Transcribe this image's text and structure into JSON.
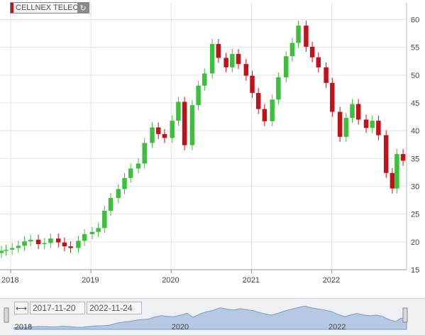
{
  "symbol": {
    "name": "CELLNEX TELECO",
    "refresh_icon": "refresh-icon"
  },
  "range": {
    "from": "2017-11-20",
    "to": "2022-11-24",
    "icon": "range-expand-icon"
  },
  "navigator": {
    "x_labels": [
      "2018",
      "2020",
      "2022"
    ]
  },
  "colors": {
    "up": "#3dbf3d",
    "down": "#c1121a",
    "grid": "#e3e3e3",
    "axis_text": "#444444",
    "navigator_fill": "#b7c9e2",
    "navigator_line": "#7a9cc6"
  },
  "chart_data": {
    "type": "candlestick",
    "title": "",
    "xlabel": "",
    "ylabel": "",
    "x_tick_labels": [
      "2018",
      "2019",
      "2020",
      "2021",
      "2022"
    ],
    "y_ticks": [
      20,
      25,
      30,
      35,
      40,
      45,
      50,
      55,
      60
    ],
    "ylim": [
      15,
      63
    ],
    "xlim": [
      "2017-11-20",
      "2022-11-24"
    ],
    "grid": true,
    "y_axis_side": "right",
    "candles_weekly_close": [
      [
        "2017-11-20",
        18.4
      ],
      [
        "2017-12-11",
        18.6
      ],
      [
        "2018-01-08",
        18.9
      ],
      [
        "2018-02-05",
        19.3
      ],
      [
        "2018-03-05",
        20.1
      ],
      [
        "2018-04-02",
        20.4
      ],
      [
        "2018-05-07",
        19.6
      ],
      [
        "2018-06-04",
        19.8
      ],
      [
        "2018-07-02",
        20.6
      ],
      [
        "2018-08-06",
        19.9
      ],
      [
        "2018-09-03",
        19.2
      ],
      [
        "2018-10-01",
        18.9
      ],
      [
        "2018-11-05",
        20.2
      ],
      [
        "2018-12-03",
        21.4
      ],
      [
        "2019-01-07",
        21.8
      ],
      [
        "2019-02-04",
        22.5
      ],
      [
        "2019-03-04",
        25.6
      ],
      [
        "2019-04-01",
        27.9
      ],
      [
        "2019-05-06",
        29.5
      ],
      [
        "2019-06-03",
        31.5
      ],
      [
        "2019-07-01",
        33.2
      ],
      [
        "2019-08-05",
        34.1
      ],
      [
        "2019-09-02",
        37.8
      ],
      [
        "2019-10-07",
        40.6
      ],
      [
        "2019-11-04",
        39.4
      ],
      [
        "2019-12-02",
        38.7
      ],
      [
        "2020-01-06",
        41.8
      ],
      [
        "2020-02-03",
        45.2
      ],
      [
        "2020-03-02",
        37.4
      ],
      [
        "2020-04-06",
        44.6
      ],
      [
        "2020-05-04",
        48.1
      ],
      [
        "2020-06-01",
        50.3
      ],
      [
        "2020-07-06",
        55.6
      ],
      [
        "2020-08-03",
        53.1
      ],
      [
        "2020-09-07",
        51.4
      ],
      [
        "2020-10-05",
        53.8
      ],
      [
        "2020-11-02",
        52.0
      ],
      [
        "2020-12-07",
        49.9
      ],
      [
        "2021-01-04",
        46.8
      ],
      [
        "2021-02-01",
        43.9
      ],
      [
        "2021-03-01",
        41.7
      ],
      [
        "2021-04-05",
        45.6
      ],
      [
        "2021-05-03",
        49.6
      ],
      [
        "2021-06-07",
        53.4
      ],
      [
        "2021-07-05",
        55.8
      ],
      [
        "2021-08-02",
        58.9
      ],
      [
        "2021-09-06",
        55.1
      ],
      [
        "2021-10-04",
        53.2
      ],
      [
        "2021-11-01",
        51.4
      ],
      [
        "2021-12-06",
        48.6
      ],
      [
        "2022-01-03",
        43.4
      ],
      [
        "2022-02-07",
        38.9
      ],
      [
        "2022-03-07",
        42.3
      ],
      [
        "2022-04-04",
        44.8
      ],
      [
        "2022-05-02",
        42.0
      ],
      [
        "2022-06-06",
        40.5
      ],
      [
        "2022-07-04",
        41.8
      ],
      [
        "2022-08-01",
        39.2
      ],
      [
        "2022-09-05",
        32.4
      ],
      [
        "2022-10-03",
        29.6
      ],
      [
        "2022-10-24",
        35.8
      ],
      [
        "2022-11-21",
        34.6
      ]
    ]
  }
}
